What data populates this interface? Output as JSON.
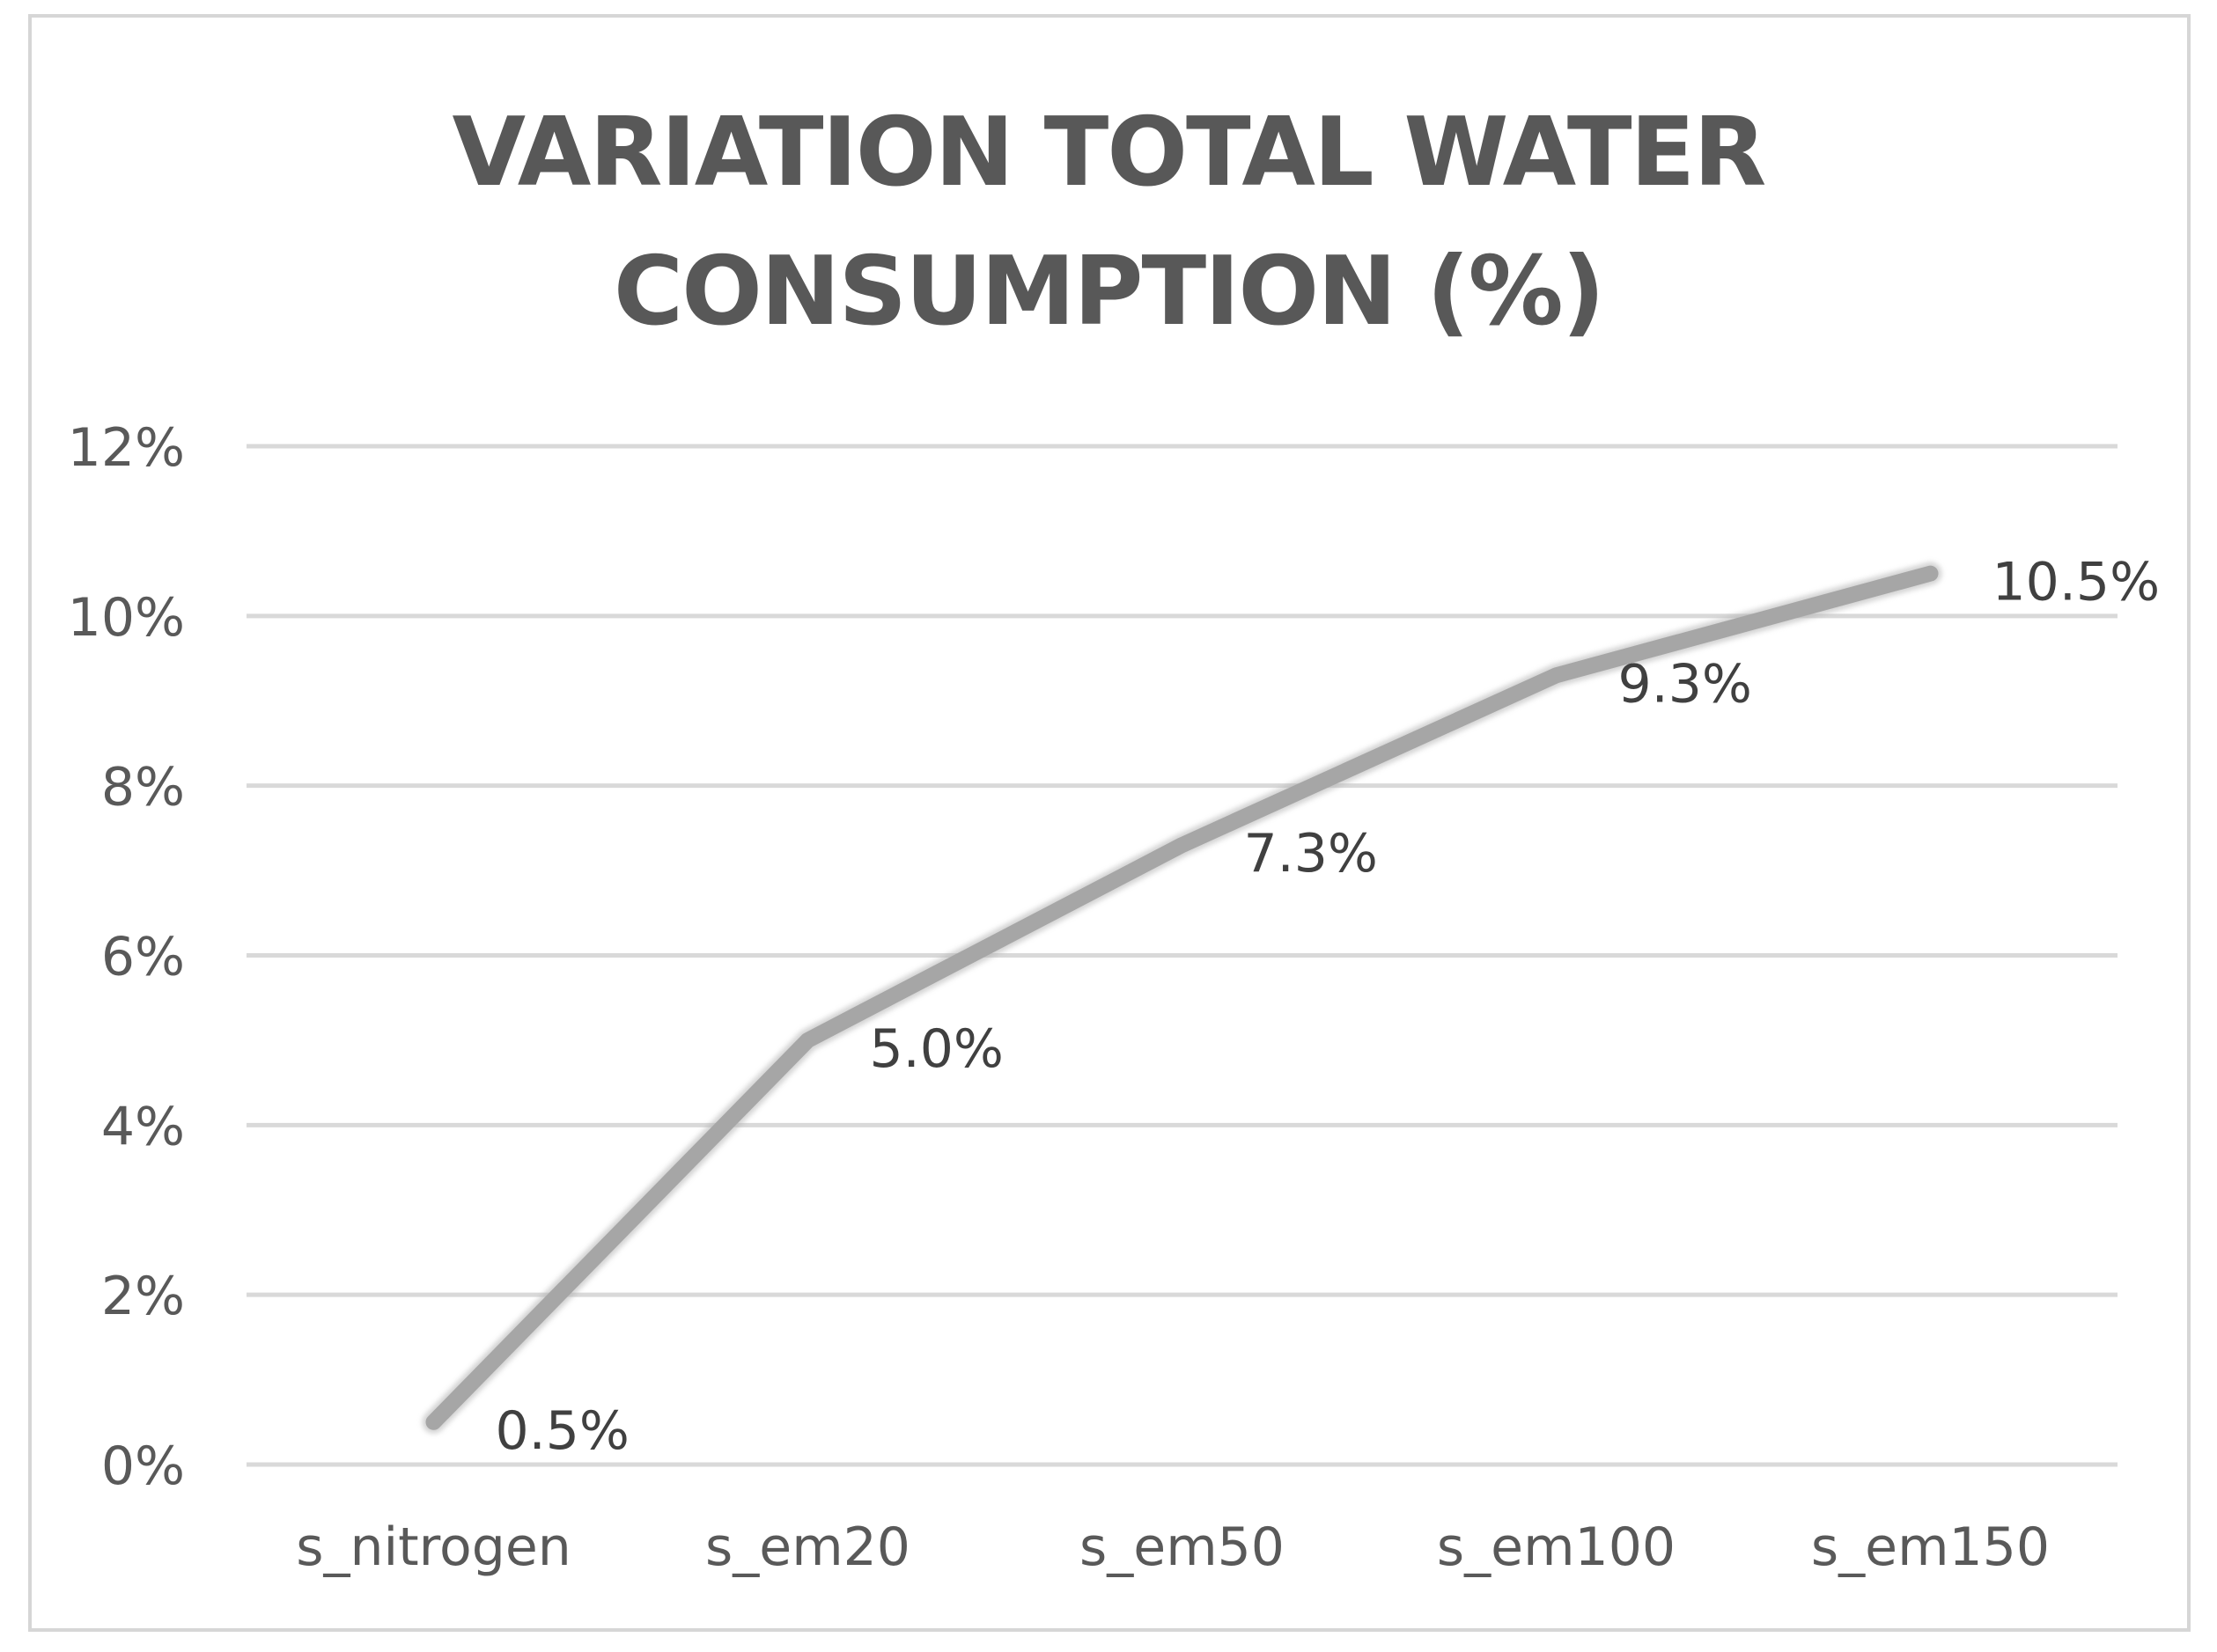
{
  "chart_data": {
    "type": "line",
    "title_lines": [
      "VARIATION  TOTAL WATER",
      "CONSUMPTION  (%)"
    ],
    "categories": [
      "s_nitrogen",
      "s_em20",
      "s_em50",
      "s_em100",
      "s_em150"
    ],
    "series": [
      {
        "name": "Variation total water consumption",
        "values": [
          0.5,
          5.0,
          7.3,
          9.3,
          10.5
        ],
        "labels": [
          "0.5%",
          "5.0%",
          "7.3%",
          "9.3%",
          "10.5%"
        ]
      }
    ],
    "yticks": [
      0,
      2,
      4,
      6,
      8,
      10,
      12
    ],
    "ytick_labels": [
      "0%",
      "2%",
      "4%",
      "6%",
      "8%",
      "10%",
      "12%"
    ],
    "ylim": [
      0,
      12
    ],
    "grid": true,
    "legend": "none",
    "colors": {
      "line": "#a6a6a6",
      "gridline": "#d9d9d9",
      "tick_text": "#595959",
      "label_text": "#404040",
      "title_text": "#595959"
    }
  }
}
